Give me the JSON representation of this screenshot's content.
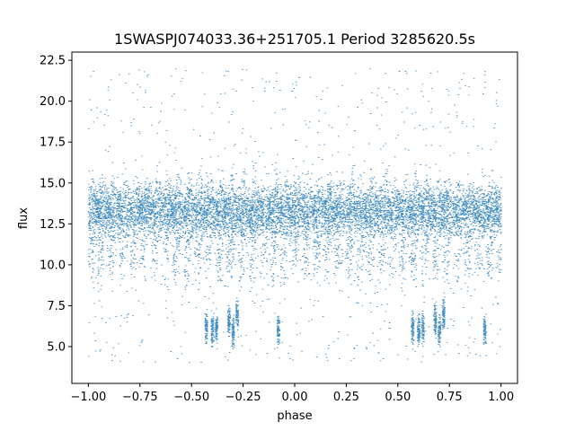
{
  "chart_data": {
    "type": "scatter",
    "title": "1SWASPJ074033.36+251705.1 Period 3285620.5s",
    "xlabel": "phase",
    "ylabel": "flux",
    "xlim": [
      -1.08,
      1.08
    ],
    "ylim": [
      2.75,
      23.0
    ],
    "xticks": [
      -1.0,
      -0.75,
      -0.5,
      -0.25,
      0.0,
      0.25,
      0.5,
      0.75,
      1.0
    ],
    "xtick_labels": [
      "−1.00",
      "−0.75",
      "−0.50",
      "−0.25",
      "0.00",
      "0.25",
      "0.50",
      "0.75",
      "1.00"
    ],
    "yticks": [
      5.0,
      7.5,
      10.0,
      12.5,
      15.0,
      17.5,
      20.0,
      22.5
    ],
    "ytick_labels": [
      "5.0",
      "7.5",
      "10.0",
      "12.5",
      "15.0",
      "17.5",
      "20.0",
      "22.5"
    ],
    "grid": false,
    "marker_color": "#1f77b4",
    "series": [
      {
        "values_description_note": "",
        "bands": [
          {
            "y_center": 13.3,
            "y_spread": 0.9,
            "x_range": [
              -1.0,
              1.0
            ]
          },
          {
            "y_center": 10.6,
            "y_spread": 0.8,
            "x_range": [
              -1.0,
              1.0
            ]
          }
        ],
        "dips": [
          {
            "x": -0.43,
            "y": 6.2
          },
          {
            "x": -0.4,
            "y": 6.0
          },
          {
            "x": -0.38,
            "y": 6.1
          },
          {
            "x": -0.32,
            "y": 6.6
          },
          {
            "x": -0.3,
            "y": 5.9
          },
          {
            "x": -0.28,
            "y": 7.0
          },
          {
            "x": -0.08,
            "y": 6.0
          },
          {
            "x": 0.57,
            "y": 6.2
          },
          {
            "x": 0.6,
            "y": 6.0
          },
          {
            "x": 0.62,
            "y": 6.1
          },
          {
            "x": 0.68,
            "y": 6.6
          },
          {
            "x": 0.7,
            "y": 5.9
          },
          {
            "x": 0.72,
            "y": 7.0
          },
          {
            "x": 0.92,
            "y": 6.0
          }
        ]
      }
    ]
  }
}
